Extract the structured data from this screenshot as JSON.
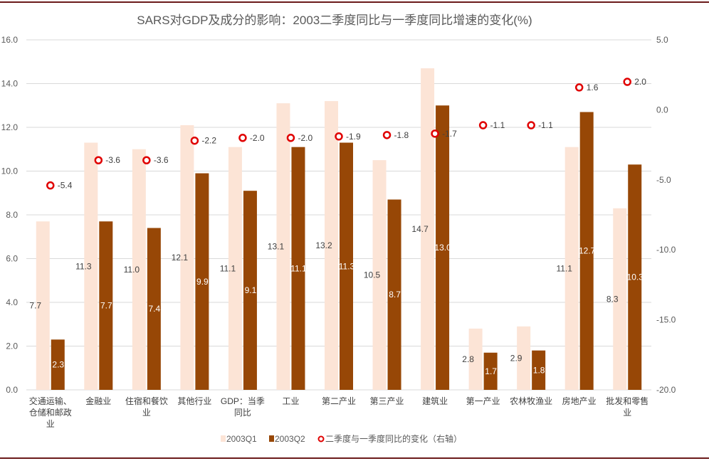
{
  "chart_data": {
    "type": "bar",
    "title": "SARS对GDP及成分的影响：2003二季度同比与一季度同比增速的变化(%)",
    "categories": [
      [
        "交通运输、",
        "仓储和邮政",
        "业"
      ],
      [
        "金融业"
      ],
      [
        "住宿和餐饮",
        "业"
      ],
      [
        "其他行业"
      ],
      [
        "GDP：当季",
        "同比"
      ],
      [
        "工业"
      ],
      [
        "第二产业"
      ],
      [
        "第三产业"
      ],
      [
        "建筑业"
      ],
      [
        "第一产业"
      ],
      [
        "农林牧渔业"
      ],
      [
        "房地产业"
      ],
      [
        "批发和零售",
        "业"
      ]
    ],
    "series": [
      {
        "name": "2003Q1",
        "type": "bar",
        "axis": "left",
        "color": "#fce4d6",
        "values": [
          7.7,
          11.3,
          11.0,
          12.1,
          11.1,
          13.1,
          13.2,
          10.5,
          14.7,
          2.8,
          2.9,
          11.1,
          8.3
        ]
      },
      {
        "name": "2003Q2",
        "type": "bar",
        "axis": "left",
        "color": "#974706",
        "values": [
          2.3,
          7.7,
          7.4,
          9.9,
          9.1,
          11.1,
          11.3,
          8.7,
          13.0,
          1.7,
          1.8,
          12.7,
          10.3
        ]
      },
      {
        "name": "二季度与一季度同比的变化（右轴）",
        "type": "scatter",
        "axis": "right",
        "color": "#e00000",
        "values": [
          -5.4,
          -3.6,
          -3.6,
          -2.2,
          -2.0,
          -2.0,
          -1.9,
          -1.8,
          -1.7,
          -1.1,
          -1.1,
          1.6,
          2.0
        ]
      }
    ],
    "y_left": {
      "range": [
        0,
        16
      ],
      "ticks": [
        "0.0",
        "2.0",
        "4.0",
        "6.0",
        "8.0",
        "10.0",
        "12.0",
        "14.0",
        "16.0"
      ]
    },
    "y_right": {
      "range": [
        -20,
        5
      ],
      "ticks": [
        "-20.0",
        "-15.0",
        "-10.0",
        "-5.0",
        "0.0",
        "5.0"
      ]
    },
    "grid": true,
    "legend": "bottom"
  }
}
